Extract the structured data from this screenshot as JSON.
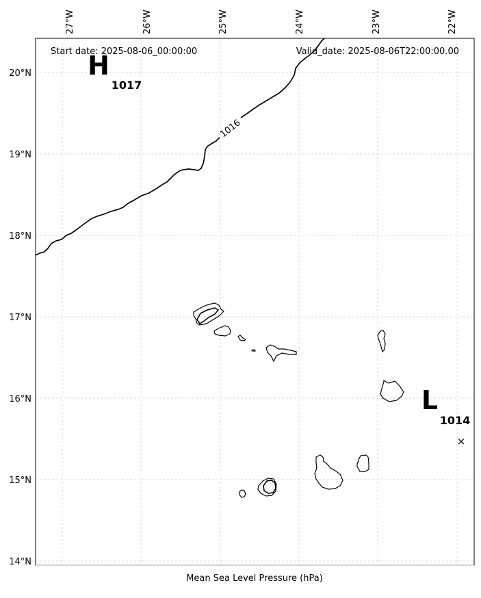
{
  "header": {
    "start_date": "Start date: 2025-08-06_00:00:00",
    "valid_date": "Valid_date: 2025-08-06T22:00:00.00"
  },
  "caption": "Mean Sea Level Pressure (hPa)",
  "axes": {
    "lon_ticks": [
      "27°W",
      "26°W",
      "25°W",
      "24°W",
      "23°W",
      "22°W"
    ],
    "lat_ticks": [
      "20°N",
      "19°N",
      "18°N",
      "17°N",
      "16°N",
      "15°N",
      "14°N"
    ]
  },
  "pressure_centers": [
    {
      "letter": "H",
      "value": "1017"
    },
    {
      "letter": "L",
      "value": "1014"
    }
  ],
  "isobar_label": "1016",
  "marker": "×"
}
